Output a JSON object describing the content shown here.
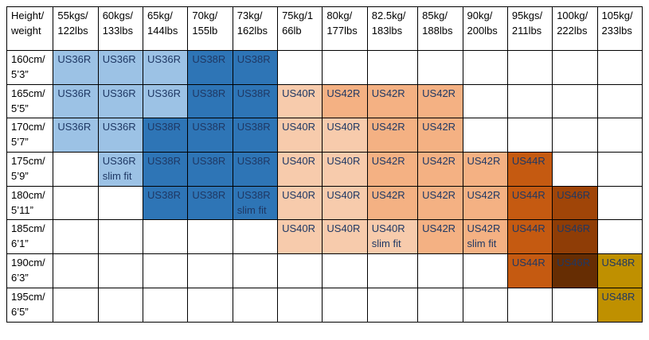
{
  "colors": {
    "border": "#000000",
    "header_text": "#000000",
    "cell_text": "#1F3864",
    "36": "#9CC2E5",
    "38": "#2E75B6",
    "40": "#F7CBAC",
    "42": "#F4B183",
    "44": "#C55A11",
    "46a": "#A04508",
    "46b": "#8F3D06",
    "46c": "#662D03",
    "48": "#BF9000"
  },
  "table": {
    "corner": "Height/\nweight",
    "columns": [
      "55kgs/\n122lbs",
      "60kgs/\n133lbs",
      "65kg/\n144lbs",
      "70kg/\n155lb",
      "73kg/\n162lbs",
      "75kg/1\n66lb",
      "80kg/\n177lbs",
      "82.5kg/\n183lbs",
      "85kg/\n188lbs",
      "90kg/\n200lbs",
      "95kgs/\n211lbs",
      "100kg/\n222lbs",
      "105kg/\n233lbs"
    ],
    "rows": [
      {
        "label": "160cm/\n5’3”",
        "cells": [
          [
            "US36R",
            "36"
          ],
          [
            "US36R",
            "36"
          ],
          [
            "US36R",
            "36"
          ],
          [
            "US38R",
            "38"
          ],
          [
            "US38R",
            "38"
          ],
          null,
          null,
          null,
          null,
          null,
          null,
          null,
          null
        ]
      },
      {
        "label": "165cm/\n5’5”",
        "cells": [
          [
            "US36R",
            "36"
          ],
          [
            "US36R",
            "36"
          ],
          [
            "US36R",
            "36"
          ],
          [
            "US38R",
            "38"
          ],
          [
            "US38R",
            "38"
          ],
          [
            "US40R",
            "40"
          ],
          [
            "US42R",
            "42"
          ],
          [
            "US42R",
            "42"
          ],
          [
            "US42R",
            "42"
          ],
          null,
          null,
          null,
          null
        ]
      },
      {
        "label": "170cm/\n5’7”",
        "cells": [
          [
            "US36R",
            "36"
          ],
          [
            "US36R",
            "36"
          ],
          [
            "US38R",
            "38"
          ],
          [
            "US38R",
            "38"
          ],
          [
            "US38R",
            "38"
          ],
          [
            "US40R",
            "40"
          ],
          [
            "US40R",
            "40"
          ],
          [
            "US42R",
            "42"
          ],
          [
            "US42R",
            "42"
          ],
          null,
          null,
          null,
          null
        ]
      },
      {
        "label": "175cm/\n5’9”",
        "cells": [
          null,
          [
            "US36R\nslim fit",
            "36"
          ],
          [
            "US38R",
            "38"
          ],
          [
            "US38R",
            "38"
          ],
          [
            "US38R",
            "38"
          ],
          [
            "US40R",
            "40"
          ],
          [
            "US40R",
            "40"
          ],
          [
            "US42R",
            "42"
          ],
          [
            "US42R",
            "42"
          ],
          [
            "US42R",
            "42"
          ],
          [
            "US44R",
            "44"
          ],
          null,
          null
        ]
      },
      {
        "label": "180cm/\n5’11”",
        "cells": [
          null,
          null,
          [
            "US38R",
            "38"
          ],
          [
            "US38R",
            "38"
          ],
          [
            "US38R\nslim fit",
            "38"
          ],
          [
            "US40R",
            "40"
          ],
          [
            "US40R",
            "40"
          ],
          [
            "US42R",
            "42"
          ],
          [
            "US42R",
            "42"
          ],
          [
            "US42R",
            "42"
          ],
          [
            "US44R",
            "44"
          ],
          [
            "US46R",
            "46a"
          ],
          null
        ]
      },
      {
        "label": "185cm/\n6’1”",
        "cells": [
          null,
          null,
          null,
          null,
          null,
          [
            "US40R",
            "40"
          ],
          [
            "US40R",
            "40"
          ],
          [
            "US40R\nslim fit",
            "40"
          ],
          [
            "US42R",
            "42"
          ],
          [
            "US42R\nslim fit",
            "42"
          ],
          [
            "US44R",
            "44"
          ],
          [
            "US46R",
            "46b"
          ],
          null
        ]
      },
      {
        "label": "190cm/\n6’3”",
        "cells": [
          null,
          null,
          null,
          null,
          null,
          null,
          null,
          null,
          null,
          null,
          [
            "US44R",
            "44"
          ],
          [
            "US46R",
            "46c"
          ],
          [
            "US48R",
            "48"
          ]
        ]
      },
      {
        "label": "195cm/\n6’5”",
        "cells": [
          null,
          null,
          null,
          null,
          null,
          null,
          null,
          null,
          null,
          null,
          null,
          null,
          [
            "US48R",
            "48"
          ]
        ]
      }
    ]
  }
}
